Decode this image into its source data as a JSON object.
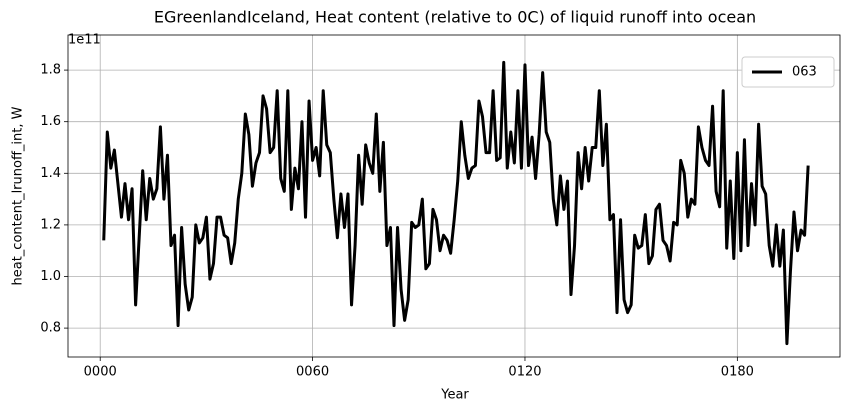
{
  "chart_data": {
    "type": "line",
    "title": "EGreenlandIceland, Heat content (relative to 0C) of liquid runoff into ocean",
    "xlabel": "Year",
    "ylabel": "heat_content_lrunoff_int, W",
    "y_offset_label": "1e11",
    "x": [
      1,
      2,
      3,
      4,
      5,
      6,
      7,
      8,
      9,
      10,
      11,
      12,
      13,
      14,
      15,
      16,
      17,
      18,
      19,
      20,
      21,
      22,
      23,
      24,
      25,
      26,
      27,
      28,
      29,
      30,
      31,
      32,
      33,
      34,
      35,
      36,
      37,
      38,
      39,
      40,
      41,
      42,
      43,
      44,
      45,
      46,
      47,
      48,
      49,
      50,
      51,
      52,
      53,
      54,
      55,
      56,
      57,
      58,
      59,
      60,
      61,
      62,
      63,
      64,
      65,
      66,
      67,
      68,
      69,
      70,
      71,
      72,
      73,
      74,
      75,
      76,
      77,
      78,
      79,
      80,
      81,
      82,
      83,
      84,
      85,
      86,
      87,
      88,
      89,
      90,
      91,
      92,
      93,
      94,
      95,
      96,
      97,
      98,
      99,
      100,
      101,
      102,
      103,
      104,
      105,
      106,
      107,
      108,
      109,
      110,
      111,
      112,
      113,
      114,
      115,
      116,
      117,
      118,
      119,
      120,
      121,
      122,
      123,
      124,
      125,
      126,
      127,
      128,
      129,
      130,
      131,
      132,
      133,
      134,
      135,
      136,
      137,
      138,
      139,
      140,
      141,
      142,
      143,
      144,
      145,
      146,
      147,
      148,
      149,
      150,
      151,
      152,
      153,
      154,
      155,
      156,
      157,
      158,
      159,
      160,
      161,
      162,
      163,
      164,
      165,
      166,
      167,
      168,
      169,
      170,
      171,
      172,
      173,
      174,
      175,
      176,
      177,
      178,
      179,
      180,
      181,
      182,
      183,
      184,
      185,
      186,
      187,
      188,
      189,
      190,
      191,
      192,
      193,
      194,
      195,
      196,
      197,
      198,
      199,
      200
    ],
    "series": [
      {
        "name": "063",
        "color": "#000000",
        "values": [
          1.14,
          1.56,
          1.42,
          1.49,
          1.36,
          1.23,
          1.36,
          1.22,
          1.34,
          0.89,
          1.15,
          1.41,
          1.22,
          1.38,
          1.3,
          1.34,
          1.58,
          1.3,
          1.47,
          1.12,
          1.16,
          0.81,
          1.19,
          0.97,
          0.87,
          0.92,
          1.2,
          1.13,
          1.15,
          1.23,
          0.99,
          1.05,
          1.23,
          1.23,
          1.16,
          1.15,
          1.05,
          1.13,
          1.3,
          1.4,
          1.63,
          1.55,
          1.35,
          1.44,
          1.48,
          1.7,
          1.65,
          1.48,
          1.5,
          1.72,
          1.38,
          1.33,
          1.72,
          1.26,
          1.42,
          1.34,
          1.6,
          1.23,
          1.68,
          1.45,
          1.5,
          1.39,
          1.72,
          1.51,
          1.48,
          1.3,
          1.15,
          1.32,
          1.19,
          1.32,
          0.89,
          1.12,
          1.47,
          1.28,
          1.51,
          1.44,
          1.4,
          1.63,
          1.33,
          1.52,
          1.12,
          1.19,
          0.81,
          1.19,
          0.95,
          0.83,
          0.91,
          1.21,
          1.19,
          1.2,
          1.3,
          1.03,
          1.05,
          1.26,
          1.22,
          1.1,
          1.16,
          1.14,
          1.09,
          1.22,
          1.37,
          1.6,
          1.47,
          1.38,
          1.42,
          1.43,
          1.68,
          1.62,
          1.48,
          1.48,
          1.72,
          1.45,
          1.46,
          1.83,
          1.42,
          1.56,
          1.44,
          1.72,
          1.42,
          1.82,
          1.43,
          1.54,
          1.38,
          1.55,
          1.79,
          1.56,
          1.52,
          1.3,
          1.2,
          1.39,
          1.26,
          1.37,
          0.93,
          1.12,
          1.48,
          1.34,
          1.5,
          1.37,
          1.5,
          1.5,
          1.72,
          1.43,
          1.59,
          1.22,
          1.24,
          0.86,
          1.22,
          0.91,
          0.86,
          0.89,
          1.16,
          1.11,
          1.12,
          1.24,
          1.05,
          1.08,
          1.26,
          1.28,
          1.14,
          1.12,
          1.06,
          1.21,
          1.2,
          1.45,
          1.4,
          1.23,
          1.3,
          1.28,
          1.58,
          1.5,
          1.45,
          1.43,
          1.66,
          1.33,
          1.27,
          1.72,
          1.11,
          1.37,
          1.07,
          1.48,
          1.1,
          1.53,
          1.12,
          1.36,
          1.2,
          1.59,
          1.35,
          1.32,
          1.12,
          1.04,
          1.2,
          1.04,
          1.18,
          0.74,
          1.02,
          1.25,
          1.1,
          1.18,
          1.16,
          1.43
        ]
      }
    ],
    "xlim": [
      -9.1,
      209
    ],
    "xticks": [
      {
        "value": 0,
        "label": "0000"
      },
      {
        "value": 60,
        "label": "0060"
      },
      {
        "value": 120,
        "label": "0120"
      },
      {
        "value": 180,
        "label": "0180"
      }
    ],
    "ylim": [
      0.688,
      1.936
    ],
    "yticks": [
      0.8,
      {
        "value": 1,
        "label": "1.0"
      },
      1.2,
      1.4,
      1.6,
      1.8
    ],
    "grid": true,
    "legend": "upper right"
  }
}
